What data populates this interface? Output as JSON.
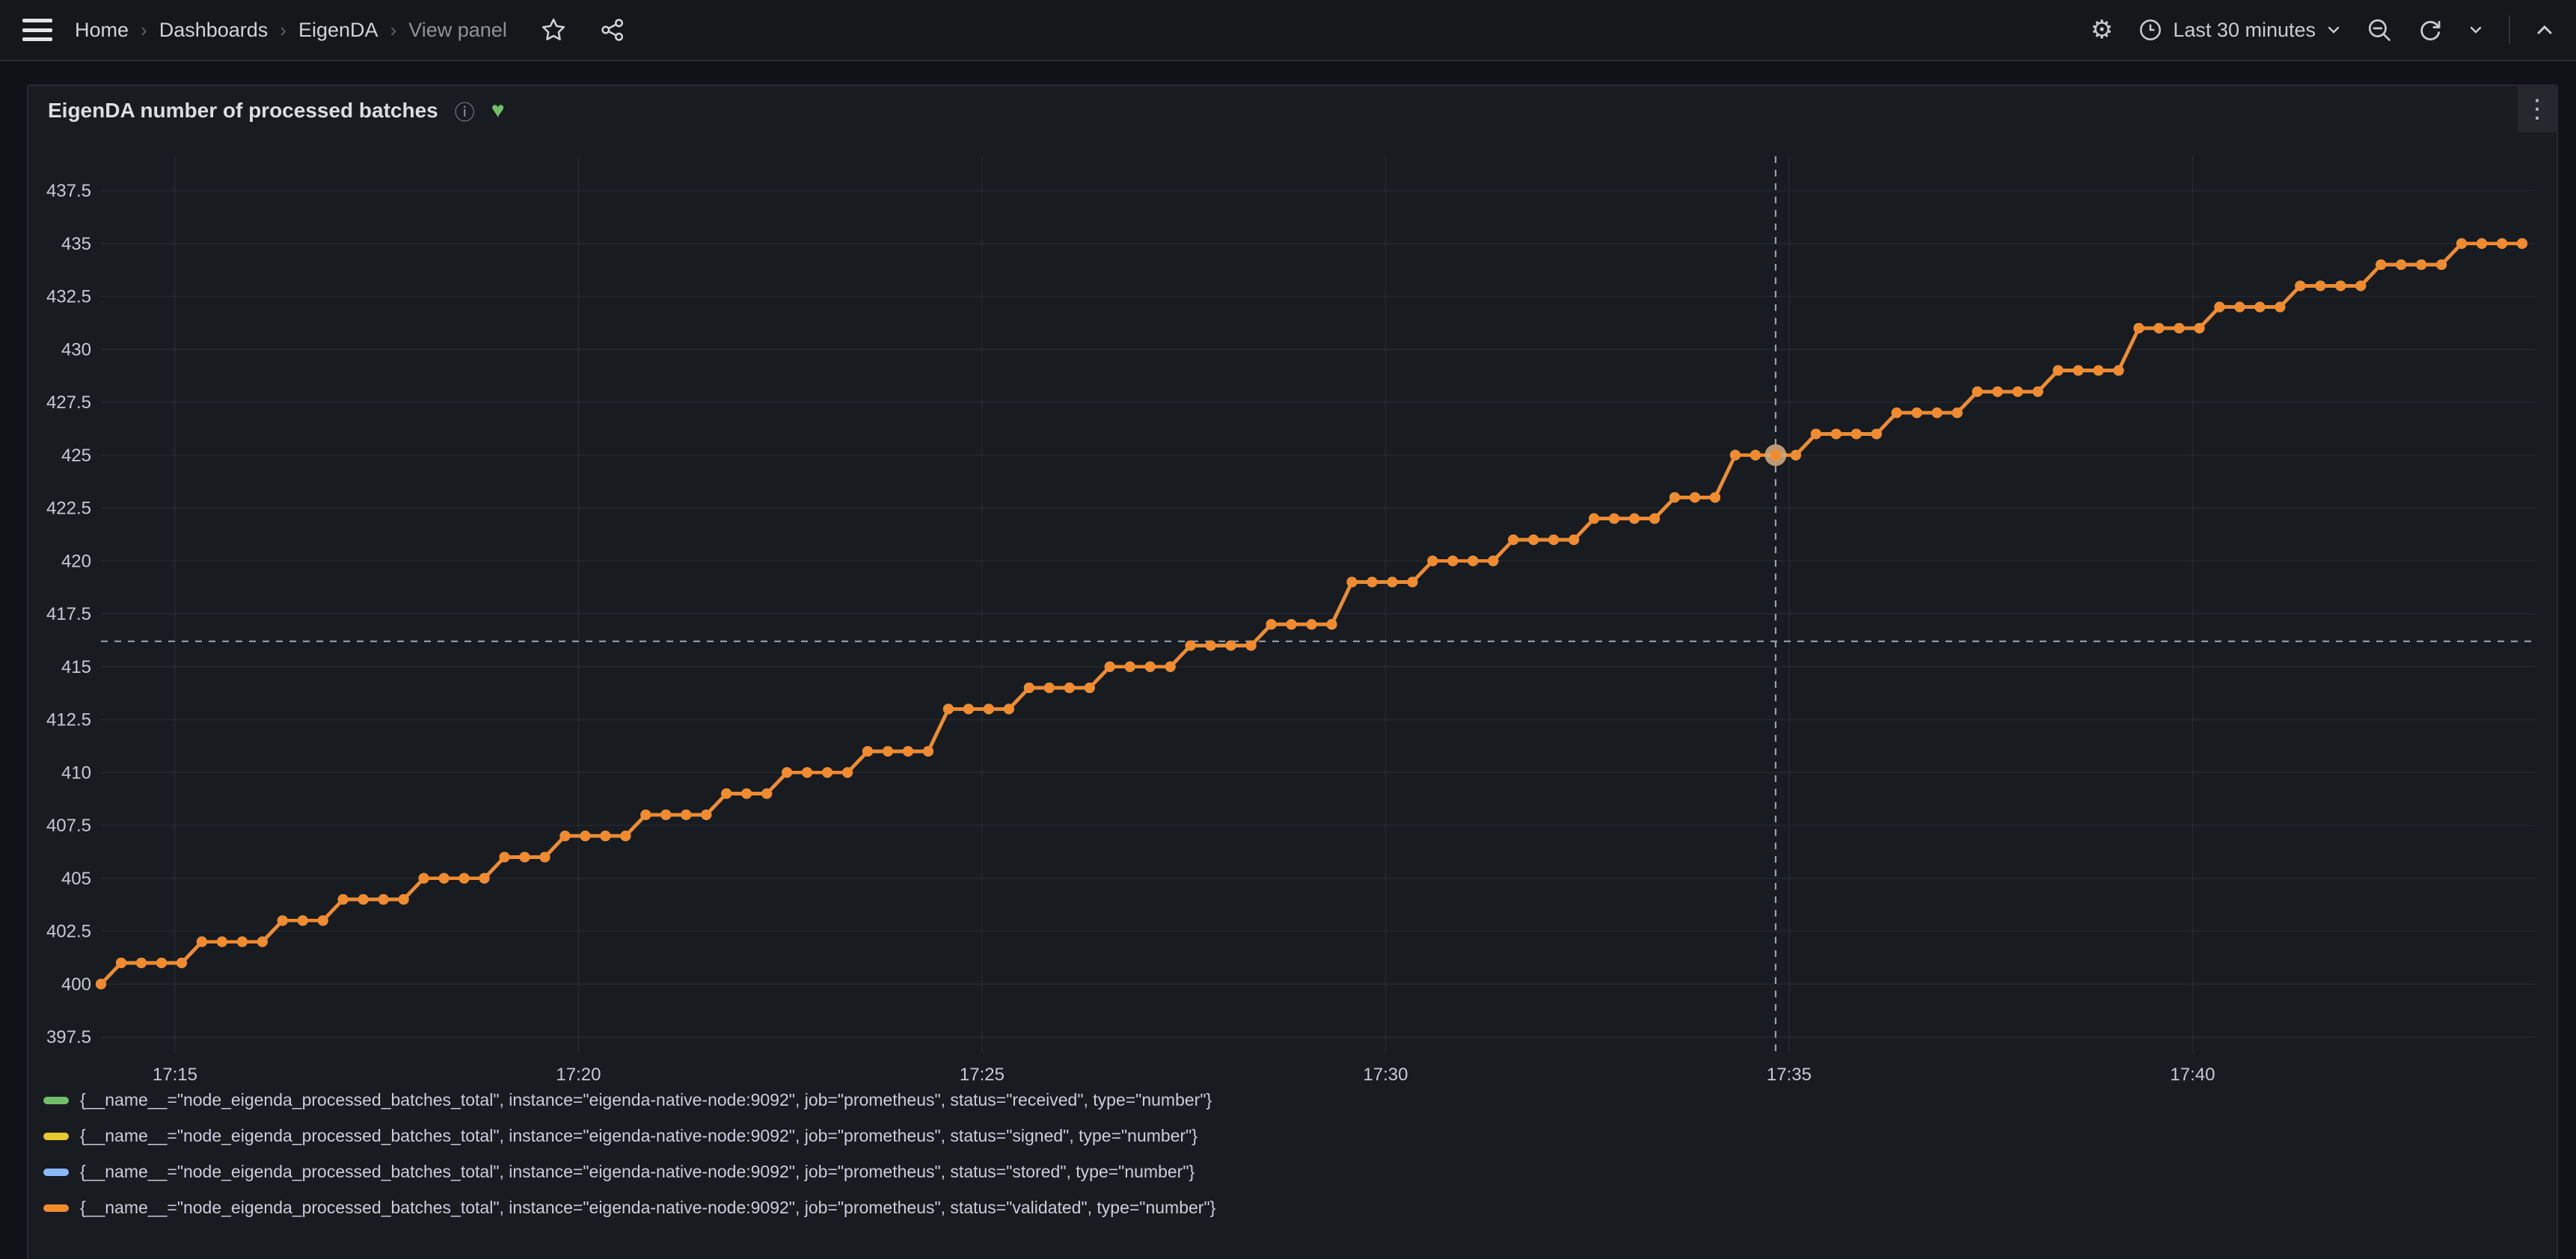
{
  "nav": {
    "breadcrumbs": [
      "Home",
      "Dashboards",
      "EigenDA",
      "View panel"
    ],
    "separator": "›",
    "icons": [
      "menu",
      "star",
      "share",
      "gear",
      "clock",
      "zoom-out",
      "refresh",
      "chevron-down",
      "chevron-up"
    ],
    "time_range": "Last 30 minutes"
  },
  "panel": {
    "title": "EigenDA number of processed batches",
    "health_icon": "♥",
    "info_icon": "ⓘ",
    "menu_icon": "⋮"
  },
  "colors": {
    "background": "#111217",
    "panel_bg": "#181b20",
    "grid": "rgba(204,208,222,0.07)",
    "axis_text": "#c9cad1",
    "crosshair": "#97a0aa",
    "highlight_halo": "#cda77c"
  },
  "chart_data": {
    "type": "line",
    "title": "EigenDA number of processed batches",
    "xlabel": "",
    "ylabel": "",
    "x_start_label": "17:14",
    "x_span_seconds": 1810,
    "x_ticks": [
      {
        "t": 55,
        "label": "17:15"
      },
      {
        "t": 355,
        "label": "17:20"
      },
      {
        "t": 655,
        "label": "17:25"
      },
      {
        "t": 955,
        "label": "17:30"
      },
      {
        "t": 1255,
        "label": "17:35"
      },
      {
        "t": 1555,
        "label": "17:40"
      }
    ],
    "ylim": [
      397.5,
      437.5
    ],
    "y_ticks": [
      {
        "v": 397.5,
        "label": "397.5"
      },
      {
        "v": 400,
        "label": "400"
      },
      {
        "v": 402.5,
        "label": "402.5"
      },
      {
        "v": 405,
        "label": "405"
      },
      {
        "v": 407.5,
        "label": "407.5"
      },
      {
        "v": 410,
        "label": "410"
      },
      {
        "v": 412.5,
        "label": "412.5"
      },
      {
        "v": 415,
        "label": "415"
      },
      {
        "v": 417.5,
        "label": "417.5"
      },
      {
        "v": 420,
        "label": "420"
      },
      {
        "v": 422.5,
        "label": "422.5"
      },
      {
        "v": 425,
        "label": "425"
      },
      {
        "v": 427.5,
        "label": "427.5"
      },
      {
        "v": 430,
        "label": "430"
      },
      {
        "v": 432.5,
        "label": "432.5"
      },
      {
        "v": 435,
        "label": "435"
      },
      {
        "v": 437.5,
        "label": "437.5"
      }
    ],
    "sample_interval_seconds": 15,
    "sample_end_seconds": 1800,
    "steps": [
      [
        0,
        400
      ],
      [
        15,
        401
      ],
      [
        75,
        402
      ],
      [
        135,
        403
      ],
      [
        180,
        404
      ],
      [
        240,
        405
      ],
      [
        300,
        406
      ],
      [
        345,
        407
      ],
      [
        405,
        408
      ],
      [
        465,
        409
      ],
      [
        510,
        410
      ],
      [
        570,
        411
      ],
      [
        630,
        413
      ],
      [
        690,
        414
      ],
      [
        750,
        415
      ],
      [
        810,
        416
      ],
      [
        870,
        417
      ],
      [
        930,
        419
      ],
      [
        990,
        420
      ],
      [
        1050,
        421
      ],
      [
        1110,
        422
      ],
      [
        1170,
        423
      ],
      [
        1215,
        425
      ],
      [
        1275,
        426
      ],
      [
        1335,
        427
      ],
      [
        1395,
        428
      ],
      [
        1455,
        429
      ],
      [
        1515,
        431
      ],
      [
        1575,
        432
      ],
      [
        1635,
        433
      ],
      [
        1695,
        434
      ],
      [
        1755,
        435
      ]
    ],
    "series": [
      {
        "label": "{__name__=\"node_eigenda_processed_batches_total\", instance=\"eigenda-native-node:9092\", job=\"prometheus\", status=\"received\", type=\"number\"}",
        "color": "#73bf69"
      },
      {
        "label": "{__name__=\"node_eigenda_processed_batches_total\", instance=\"eigenda-native-node:9092\", job=\"prometheus\", status=\"signed\", type=\"number\"}",
        "color": "#e7c832"
      },
      {
        "label": "{__name__=\"node_eigenda_processed_batches_total\", instance=\"eigenda-native-node:9092\", job=\"prometheus\", status=\"stored\", type=\"number\"}",
        "color": "#8ab8ff"
      },
      {
        "label": "{__name__=\"node_eigenda_processed_batches_total\", instance=\"eigenda-native-node:9092\", job=\"prometheus\", status=\"validated\", type=\"number\"}",
        "color": "#f28a2e"
      }
    ],
    "highlight": {
      "t": 1245,
      "value": 425
    },
    "crosshair": {
      "t": 1245,
      "value": 416.2
    },
    "legend_position": "bottom",
    "grid": true
  }
}
